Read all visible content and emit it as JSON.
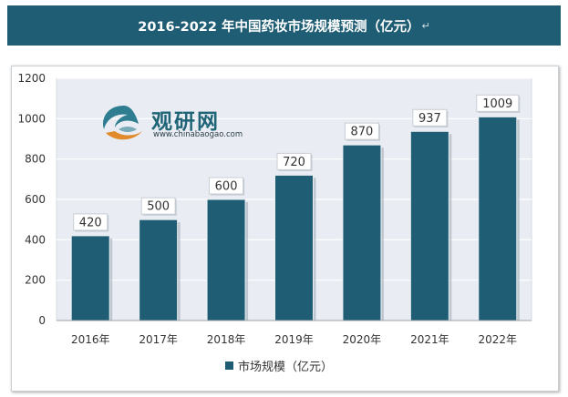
{
  "header": {
    "title": "2016-2022 年中国药妆市场规模预测（亿元）",
    "mark": "↵"
  },
  "watermark": {
    "name": "观研网",
    "url": "www.chinabaogao.com"
  },
  "chart_data": {
    "type": "bar",
    "categories": [
      "2016年",
      "2017年",
      "2018年",
      "2019年",
      "2020年",
      "2021年",
      "2022年"
    ],
    "series": [
      {
        "name": "市场规模（亿元）",
        "values": [
          420,
          500,
          600,
          720,
          870,
          937,
          1009
        ],
        "color": "#1f5d74"
      }
    ],
    "ylim": [
      0,
      1200
    ],
    "yticks": [
      0,
      200,
      400,
      600,
      800,
      1000,
      1200
    ],
    "data_labels": true,
    "grid": true,
    "legend_position": "bottom",
    "plot_background": "#eaeef4"
  }
}
